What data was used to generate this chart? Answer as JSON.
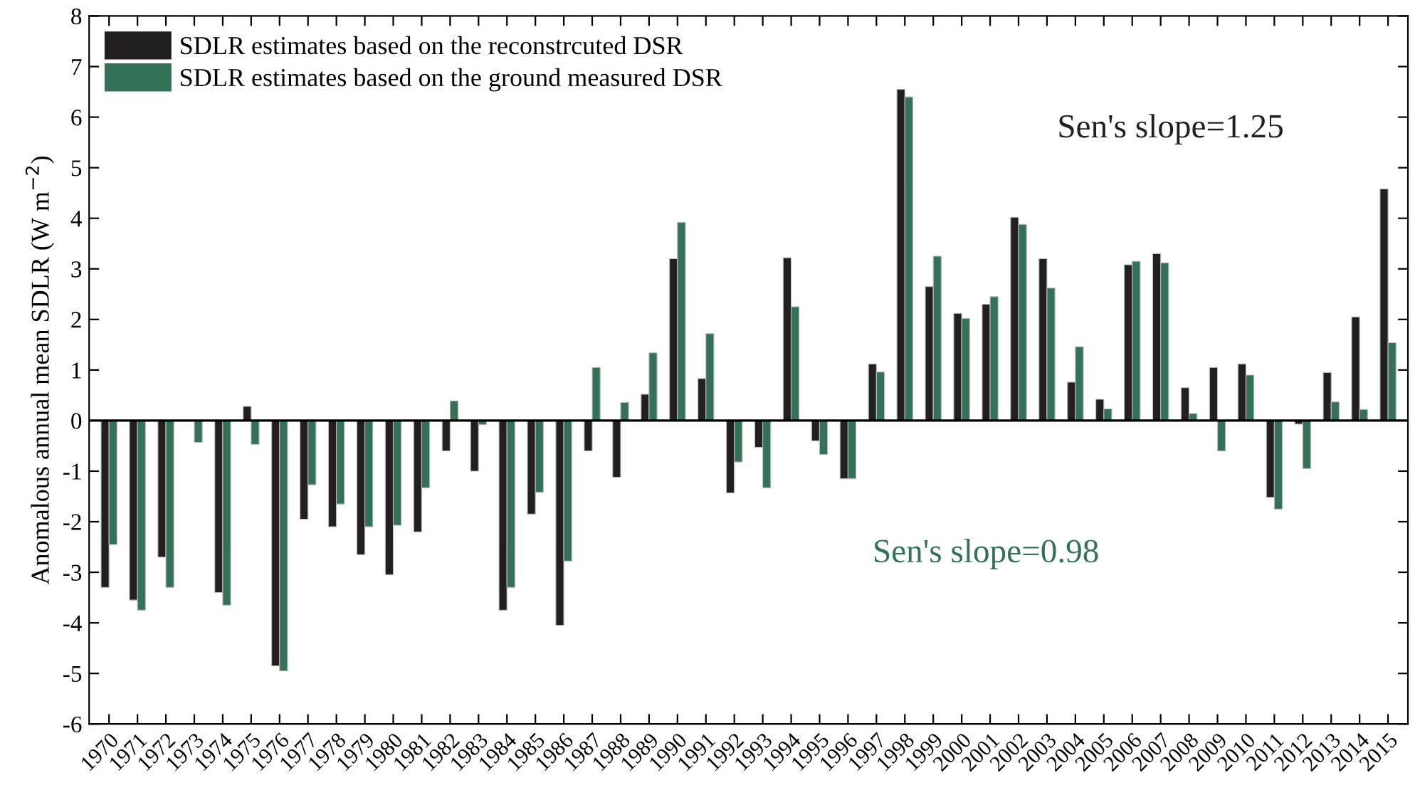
{
  "chart_data": {
    "type": "bar",
    "ylabel": "Anomalous annual mean SDLR (W m$^{−2}$)",
    "categories": [
      "1970",
      "1971",
      "1972",
      "1973",
      "1974",
      "1975",
      "1976",
      "1977",
      "1978",
      "1979",
      "1980",
      "1981",
      "1982",
      "1983",
      "1984",
      "1985",
      "1986",
      "1987",
      "1988",
      "1989",
      "1990",
      "1991",
      "1992",
      "1993",
      "1994",
      "1995",
      "1996",
      "1997",
      "1998",
      "1999",
      "2000",
      "2001",
      "2002",
      "2003",
      "2004",
      "2005",
      "2006",
      "2007",
      "2008",
      "2009",
      "2010",
      "2011",
      "2012",
      "2013",
      "2014",
      "2015"
    ],
    "series": [
      {
        "name": "SDLR estimates based on the reconstrcuted DSR",
        "color": "#231f20",
        "values": [
          -3.3,
          -3.55,
          -2.7,
          null,
          -3.4,
          0.28,
          -4.85,
          -1.95,
          -2.1,
          -2.65,
          -3.05,
          -2.2,
          -0.6,
          -1.0,
          -3.75,
          -1.85,
          -4.05,
          -0.6,
          -1.12,
          0.52,
          3.2,
          0.83,
          -1.43,
          -0.53,
          3.22,
          -0.4,
          -1.15,
          1.12,
          6.55,
          2.65,
          2.12,
          2.3,
          4.02,
          3.2,
          0.76,
          0.42,
          3.08,
          3.3,
          0.65,
          1.05,
          1.12,
          -1.52,
          -0.07,
          0.95,
          2.05,
          4.58
        ]
      },
      {
        "name": "SDLR estimates based on the ground measured DSR",
        "color": "#347257",
        "values": [
          -2.45,
          -3.75,
          -3.3,
          -0.43,
          -3.65,
          -0.47,
          -4.95,
          -1.27,
          -1.65,
          -2.1,
          -2.07,
          -1.33,
          0.39,
          -0.08,
          -3.3,
          -1.42,
          -2.78,
          1.05,
          0.36,
          1.34,
          3.92,
          1.72,
          -0.82,
          -1.33,
          2.25,
          -0.67,
          -1.15,
          0.96,
          6.4,
          3.25,
          2.02,
          2.45,
          3.88,
          2.62,
          1.46,
          0.23,
          3.15,
          3.12,
          0.14,
          -0.6,
          0.9,
          -1.75,
          -0.95,
          0.37,
          0.22,
          1.54
        ]
      }
    ],
    "annotations": [
      "Sen's slope=1.25",
      "Sen's slope=0.98"
    ],
    "ylim": [
      -6,
      8
    ],
    "yticks": [
      -6,
      -5,
      -4,
      -3,
      -2,
      -1,
      0,
      1,
      2,
      3,
      4,
      5,
      6,
      7,
      8
    ],
    "legend": "top left"
  }
}
